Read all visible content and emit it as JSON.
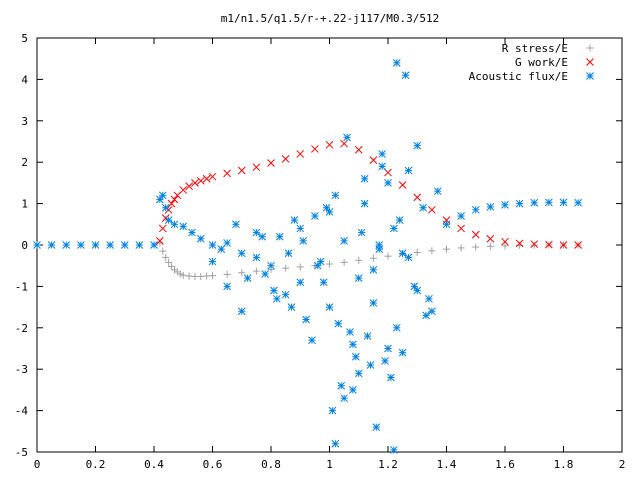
{
  "chart_data": {
    "type": "scatter",
    "title": "m1/n1.5/q1.5/r-+.22-j117/M0.3/512",
    "xlim": [
      0,
      2
    ],
    "ylim": [
      -5,
      5
    ],
    "xticks": [
      0,
      0.2,
      0.4,
      0.6,
      0.8,
      1,
      1.2,
      1.4,
      1.6,
      1.8,
      2
    ],
    "xtick_labels": [
      "0",
      "0.2",
      "0.4",
      "0.6",
      "0.8",
      "1",
      "1.2",
      "1.4",
      "1.6",
      "1.8",
      "2"
    ],
    "yticks": [
      -5,
      -4,
      -3,
      -2,
      -1,
      0,
      1,
      2,
      3,
      4,
      5
    ],
    "ytick_labels": [
      "-5",
      "-4",
      "-3",
      "-2",
      "-1",
      "0",
      "1",
      "2",
      "3",
      "4",
      "5"
    ],
    "legend_position": "top-right",
    "grid": false,
    "series": [
      {
        "name": "R stress/E",
        "marker": "plus",
        "color": "#a0a0a0",
        "x": [
          0.42,
          0.43,
          0.44,
          0.45,
          0.46,
          0.47,
          0.48,
          0.49,
          0.5,
          0.52,
          0.54,
          0.56,
          0.58,
          0.6,
          0.65,
          0.7,
          0.75,
          0.8,
          0.85,
          0.9,
          0.95,
          1.0,
          1.05,
          1.1,
          1.15,
          1.2,
          1.25,
          1.3,
          1.35,
          1.4,
          1.45,
          1.5,
          1.55,
          1.6,
          1.65,
          1.7,
          1.75,
          1.8,
          1.85
        ],
        "y": [
          0.05,
          -0.15,
          -0.3,
          -0.42,
          -0.52,
          -0.6,
          -0.65,
          -0.7,
          -0.73,
          -0.75,
          -0.76,
          -0.76,
          -0.75,
          -0.74,
          -0.71,
          -0.67,
          -0.63,
          -0.59,
          -0.56,
          -0.53,
          -0.5,
          -0.46,
          -0.42,
          -0.37,
          -0.32,
          -0.27,
          -0.22,
          -0.18,
          -0.14,
          -0.1,
          -0.07,
          -0.05,
          -0.03,
          -0.02,
          -0.01,
          -0.005,
          0,
          0,
          0
        ]
      },
      {
        "name": "G work/E",
        "marker": "cross",
        "color": "#ff0000",
        "x": [
          0.42,
          0.43,
          0.44,
          0.45,
          0.46,
          0.47,
          0.48,
          0.5,
          0.52,
          0.54,
          0.56,
          0.58,
          0.6,
          0.65,
          0.7,
          0.75,
          0.8,
          0.85,
          0.9,
          0.95,
          1.0,
          1.05,
          1.1,
          1.15,
          1.2,
          1.25,
          1.3,
          1.35,
          1.4,
          1.45,
          1.5,
          1.55,
          1.6,
          1.65,
          1.7,
          1.75,
          1.8,
          1.85
        ],
        "y": [
          0.1,
          0.4,
          0.65,
          0.85,
          1.0,
          1.1,
          1.2,
          1.33,
          1.42,
          1.5,
          1.55,
          1.6,
          1.65,
          1.73,
          1.8,
          1.88,
          1.98,
          2.08,
          2.2,
          2.32,
          2.42,
          2.45,
          2.3,
          2.05,
          1.75,
          1.45,
          1.15,
          0.85,
          0.6,
          0.4,
          0.25,
          0.15,
          0.08,
          0.04,
          0.02,
          0.01,
          0,
          0
        ]
      },
      {
        "name": "Acoustic flux/E",
        "marker": "star",
        "color": "#0080e0",
        "x": [
          0.0,
          0.05,
          0.1,
          0.15,
          0.2,
          0.25,
          0.3,
          0.35,
          0.4,
          0.42,
          0.43,
          0.44,
          0.45,
          0.47,
          0.5,
          0.53,
          0.56,
          0.6,
          0.63,
          0.65,
          0.7,
          0.75,
          0.8,
          0.83,
          0.85,
          0.88,
          0.9,
          0.92,
          0.95,
          0.97,
          1.0,
          1.02,
          1.05,
          1.07,
          1.1,
          1.12,
          1.15,
          1.18,
          1.2,
          1.22,
          1.25,
          1.27,
          1.3,
          1.32,
          1.35,
          1.37,
          1.4,
          1.45,
          1.5,
          1.55,
          1.6,
          1.65,
          1.7,
          1.75,
          1.8,
          1.85,
          0.6,
          0.65,
          0.7,
          0.75,
          0.78,
          0.82,
          0.86,
          0.9,
          0.94,
          0.98,
          1.0,
          1.03,
          1.06,
          1.09,
          1.12,
          1.15,
          1.18,
          1.21,
          1.24,
          1.27,
          1.3,
          1.33,
          0.68,
          0.72,
          0.77,
          0.81,
          0.87,
          0.91,
          0.96,
          0.99,
          1.04,
          1.08,
          1.11,
          1.14,
          1.17,
          1.2,
          1.23,
          1.26,
          1.29,
          1.34,
          1.01,
          1.05,
          1.1,
          1.16,
          1.19,
          1.22,
          1.25,
          1.02,
          1.08,
          1.13,
          1.17,
          1.23
        ],
        "y": [
          0,
          0,
          0,
          0,
          0,
          0,
          0,
          0,
          0,
          1.1,
          1.2,
          0.9,
          0.6,
          0.5,
          0.45,
          0.3,
          0.15,
          0.0,
          -0.1,
          0.05,
          -0.2,
          -0.3,
          -0.5,
          0.2,
          -1.2,
          0.6,
          -0.9,
          -1.8,
          0.7,
          -0.4,
          -1.5,
          1.2,
          0.1,
          -2.1,
          -0.8,
          1.6,
          -1.4,
          2.2,
          -2.5,
          0.4,
          -0.2,
          1.8,
          -1.1,
          0.9,
          -1.6,
          1.3,
          0.5,
          0.7,
          0.85,
          0.92,
          0.97,
          1.0,
          1.02,
          1.03,
          1.03,
          1.02,
          -0.4,
          -1.0,
          -1.6,
          0.3,
          -0.7,
          -1.3,
          -0.2,
          0.4,
          -2.3,
          -0.9,
          0.8,
          -1.9,
          2.6,
          -2.7,
          1.0,
          -0.6,
          1.9,
          -3.2,
          0.6,
          -0.3,
          2.4,
          -1.7,
          0.5,
          -0.8,
          0.2,
          -1.1,
          -1.5,
          0.1,
          -0.5,
          0.9,
          -3.4,
          -2.4,
          0.3,
          -2.9,
          -0.1,
          1.5,
          -2.0,
          4.1,
          -1.0,
          -1.3,
          -4.0,
          -3.7,
          -3.1,
          -4.4,
          -2.8,
          -4.95,
          -2.6,
          -4.8,
          -3.5,
          -2.2,
          0.0,
          4.4
        ]
      }
    ]
  }
}
